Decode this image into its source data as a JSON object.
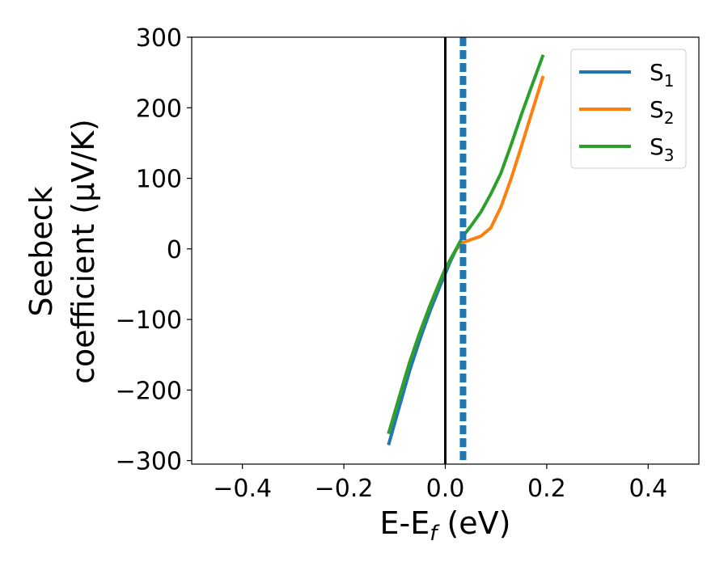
{
  "chart_data": {
    "type": "line",
    "xlabel": {
      "main": "E-E",
      "sub": "f",
      "tail": " (eV)"
    },
    "ylabel": {
      "line1": "Seebeck",
      "line2": "coefficient  (μV/K)"
    },
    "xlim": [
      -0.5,
      0.5
    ],
    "ylim": [
      -305,
      300
    ],
    "xticks": [
      -0.4,
      -0.2,
      0.0,
      0.2,
      0.4
    ],
    "xtick_labels": [
      "−0.4",
      "−0.2",
      "0.0",
      "0.2",
      "0.4"
    ],
    "yticks": [
      300,
      200,
      100,
      0,
      -100,
      -200,
      -300
    ],
    "ytick_labels": [
      "300",
      "200",
      "100",
      "0",
      "−100",
      "−200",
      "−300"
    ],
    "grid": false,
    "legend_placement": "top-right",
    "vertical_lines": [
      {
        "x": 0.0,
        "style": "solid",
        "color": "#000000"
      },
      {
        "x": 0.035,
        "style": "dashed",
        "color": "#1f77b4"
      }
    ],
    "series": [
      {
        "name": "S",
        "sub": "1",
        "color": "#1f77b4",
        "x": [
          -0.112,
          -0.09,
          -0.07,
          -0.05,
          -0.03,
          -0.01,
          0.0,
          0.01,
          0.02,
          0.03
        ],
        "y": [
          -278,
          -222,
          -172,
          -128,
          -88,
          -52,
          -35,
          -18,
          -3,
          10
        ]
      },
      {
        "name": "S",
        "sub": "2",
        "color": "#ff7f0e",
        "x": [
          -0.112,
          -0.09,
          -0.07,
          -0.05,
          -0.03,
          -0.01,
          0.0,
          0.02,
          0.035,
          0.05,
          0.07,
          0.09,
          0.11,
          0.13,
          0.15,
          0.17,
          0.193
        ],
        "y": [
          -262,
          -208,
          -160,
          -118,
          -80,
          -45,
          -28,
          -2,
          9,
          13,
          18,
          30,
          60,
          100,
          145,
          192,
          245
        ]
      },
      {
        "name": "S",
        "sub": "3",
        "color": "#2ca02c",
        "x": [
          -0.112,
          -0.09,
          -0.07,
          -0.05,
          -0.03,
          -0.01,
          0.0,
          0.02,
          0.035,
          0.05,
          0.07,
          0.09,
          0.11,
          0.13,
          0.15,
          0.17,
          0.193
        ],
        "y": [
          -262,
          -208,
          -160,
          -118,
          -80,
          -45,
          -28,
          -2,
          18,
          32,
          52,
          78,
          108,
          148,
          190,
          230,
          275
        ]
      }
    ]
  }
}
